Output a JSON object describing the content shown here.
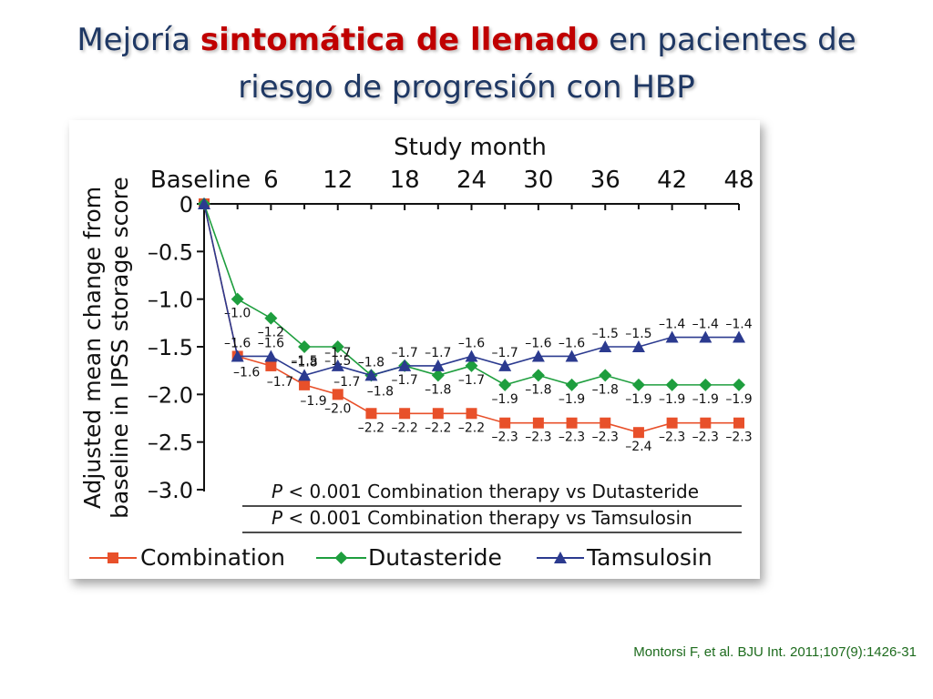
{
  "slide": {
    "title_line1_part1": "Mejoría ",
    "title_line1_highlight": "sintomática de llenado",
    "title_line1_part2": " en pacientes de",
    "title_line2": "riesgo de progresión con HBP",
    "citation": "Montorsi F, et al. BJU Int. 2011;107(9):1426-31",
    "colors": {
      "title": "#1f3864",
      "highlight": "#c00000",
      "citation": "#1d6b1d"
    }
  },
  "chart_data": {
    "type": "line",
    "title": "",
    "xlabel": "Study month",
    "ylabel_line1": "Adjusted mean change from",
    "ylabel_line2": "baseline in IPSS storage score",
    "x": [
      0,
      3,
      6,
      9,
      12,
      15,
      18,
      21,
      24,
      27,
      30,
      33,
      36,
      39,
      42,
      45,
      48
    ],
    "x_ticks": [
      0,
      6,
      12,
      18,
      24,
      30,
      36,
      42,
      48
    ],
    "x_tick_labels": [
      "Baseline",
      "6",
      "12",
      "18",
      "24",
      "30",
      "36",
      "42",
      "48"
    ],
    "xlim": [
      0,
      48
    ],
    "y_ticks": [
      0,
      -0.5,
      -1.0,
      -1.5,
      -2.0,
      -2.5,
      -3.0
    ],
    "y_tick_labels": [
      "0",
      "–0.5",
      "–1.0",
      "–1.5",
      "–2.0",
      "–2.5",
      "–3.0"
    ],
    "ylim": [
      -3.0,
      0
    ],
    "series": [
      {
        "name": "Combination",
        "color": "#e8502a",
        "marker": "square",
        "values": [
          0,
          -1.6,
          -1.7,
          -1.9,
          -2.0,
          -2.2,
          -2.2,
          -2.2,
          -2.2,
          -2.3,
          -2.3,
          -2.3,
          -2.3,
          -2.4,
          -2.3,
          -2.3,
          -2.3
        ],
        "labels": [
          "",
          "",
          "",
          "",
          "–2.0",
          "–2.2",
          "–2.2",
          "–2.2",
          "–2.2",
          "–2.3",
          "–2.3",
          "–2.3",
          "–2.3",
          "–2.4",
          "–2.3",
          "–2.3",
          "–2.3"
        ]
      },
      {
        "name": "Dutasteride",
        "color": "#1e9e3e",
        "marker": "diamond",
        "values": [
          0,
          -1.0,
          -1.2,
          -1.5,
          -1.5,
          -1.8,
          -1.7,
          -1.8,
          -1.7,
          -1.9,
          -1.8,
          -1.9,
          -1.8,
          -1.9,
          -1.9,
          -1.9,
          -1.9
        ],
        "labels": [
          "",
          "–1.0",
          "–1.2",
          "–1.5",
          "–1.5",
          "",
          "–1.7",
          "–1.8",
          "–1.7",
          "–1.9",
          "–1.8",
          "–1.9",
          "–1.8",
          "–1.9",
          "–1.9",
          "–1.9",
          "–1.9"
        ]
      },
      {
        "name": "Tamsulosin",
        "color": "#2b3a8f",
        "marker": "triangle",
        "values": [
          0,
          -1.6,
          -1.6,
          -1.8,
          -1.7,
          -1.8,
          -1.7,
          -1.7,
          -1.6,
          -1.7,
          -1.6,
          -1.6,
          -1.5,
          -1.5,
          -1.4,
          -1.4,
          -1.4
        ],
        "labels": [
          "",
          "–1.6",
          "–1.6",
          "–1.8",
          "–1.7",
          "–1.8",
          "–1.7",
          "–1.7",
          "–1.6",
          "–1.7",
          "–1.6",
          "–1.6",
          "–1.5",
          "–1.5",
          "–1.4",
          "–1.4",
          "–1.4"
        ]
      }
    ],
    "extra_labels": [
      {
        "text": "–1.6",
        "x": 3,
        "y": -1.6,
        "series": "Combination"
      },
      {
        "text": "–1.7",
        "x": 6,
        "y": -1.7,
        "series": "Combination"
      },
      {
        "text": "–1.9",
        "x": 9,
        "y": -1.9,
        "series": "Combination"
      },
      {
        "text": "–1.7",
        "x": 12,
        "y": -1.7,
        "series": "Tamsulosin"
      },
      {
        "text": "–1.8",
        "x": 15,
        "y": -1.8,
        "series": "Dutasteride"
      }
    ],
    "annotations": [
      {
        "p": "P",
        "text": " < 0.001 Combination therapy vs Dutasteride"
      },
      {
        "p": "P",
        "text": " < 0.001 Combination therapy vs Tamsulosin"
      }
    ],
    "legend_position": "bottom",
    "grid": false
  }
}
